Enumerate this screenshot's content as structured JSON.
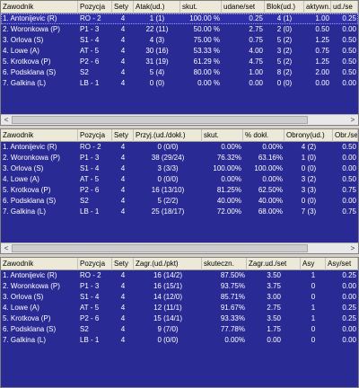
{
  "panels": [
    {
      "headers": [
        "Zawodnik",
        "Pozycja",
        "Sety",
        "Atak(ud.)",
        "skut.",
        "udane/set",
        "Blok(ud.)",
        "aktywn.",
        "ud./se"
      ],
      "rows": [
        [
          "1. Antonijevic (R)",
          "RO - 2",
          "4",
          "1 (1)",
          "100.00 %",
          "0.25",
          "4 (1)",
          "1.00",
          "0.25"
        ],
        [
          "2. Woronkowa (P)",
          "P1 - 3",
          "4",
          "22 (11)",
          "50.00 %",
          "2.75",
          "2 (0)",
          "0.50",
          "0.00"
        ],
        [
          "3. Orlova (S)",
          "S1 - 4",
          "4",
          "4 (3)",
          "75.00 %",
          "0.75",
          "5 (2)",
          "1.25",
          "0.50"
        ],
        [
          "4. Lowe (A)",
          "AT - 5",
          "4",
          "30 (16)",
          "53.33 %",
          "4.00",
          "3 (2)",
          "0.75",
          "0.50"
        ],
        [
          "5. Krotkova (P)",
          "P2 - 6",
          "4",
          "31 (19)",
          "61.29 %",
          "4.75",
          "5 (2)",
          "1.25",
          "0.50"
        ],
        [
          "6. Podsklana (S)",
          "S2",
          "4",
          "5 (4)",
          "80.00 %",
          "1.00",
          "8 (2)",
          "2.00",
          "0.50"
        ],
        [
          "7. Galkina (L)",
          "LB - 1",
          "4",
          "0 (0)",
          "0.00 %",
          "0.00",
          "0 (0)",
          "0.00",
          "0.00"
        ]
      ]
    },
    {
      "headers": [
        "Zawodnik",
        "Pozycja",
        "Sety",
        "Przyj.(ud./dokł.)",
        "skut.",
        "% dokł.",
        "Obrony(ud.)",
        "Obr./se"
      ],
      "rows": [
        [
          "1. Antonijevic (R)",
          "RO - 2",
          "4",
          "0 (0/0)",
          "0.00%",
          "0.00%",
          "4 (2)",
          "0.50"
        ],
        [
          "2. Woronkowa (P)",
          "P1 - 3",
          "4",
          "38 (29/24)",
          "76.32%",
          "63.16%",
          "1 (0)",
          "0.00"
        ],
        [
          "3. Orlova (S)",
          "S1 - 4",
          "4",
          "3 (3/3)",
          "100.00%",
          "100.00%",
          "0 (0)",
          "0.00"
        ],
        [
          "4. Lowe (A)",
          "AT - 5",
          "4",
          "0 (0/0)",
          "0.00%",
          "0.00%",
          "3 (2)",
          "0.50"
        ],
        [
          "5. Krotkova (P)",
          "P2 - 6",
          "4",
          "16 (13/10)",
          "81.25%",
          "62.50%",
          "3 (3)",
          "0.75"
        ],
        [
          "6. Podsklana (S)",
          "S2",
          "4",
          "5 (2/2)",
          "40.00%",
          "40.00%",
          "0 (0)",
          "0.00"
        ],
        [
          "7. Galkina (L)",
          "LB - 1",
          "4",
          "25 (18/17)",
          "72.00%",
          "68.00%",
          "7 (3)",
          "0.75"
        ]
      ]
    },
    {
      "headers": [
        "Zawodnik",
        "Pozycja",
        "Sety",
        "Zagr.(ud./pkt)",
        "skuteczn.",
        "Zagr.ud./set",
        "Asy",
        "Asy/set"
      ],
      "rows": [
        [
          "1. Antonijevic (R)",
          "RO - 2",
          "4",
          "16 (14/2)",
          "87.50%",
          "3.50",
          "1",
          "0.25"
        ],
        [
          "2. Woronkowa (P)",
          "P1 - 3",
          "4",
          "16 (15/1)",
          "93.75%",
          "3.75",
          "0",
          "0.00"
        ],
        [
          "3. Orlova (S)",
          "S1 - 4",
          "4",
          "14 (12/0)",
          "85.71%",
          "3.00",
          "0",
          "0.00"
        ],
        [
          "4. Lowe (A)",
          "AT - 5",
          "4",
          "12 (11/1)",
          "91.67%",
          "2.75",
          "1",
          "0.25"
        ],
        [
          "5. Krotkova (P)",
          "P2 - 6",
          "4",
          "15 (14/1)",
          "93.33%",
          "3.50",
          "1",
          "0.25"
        ],
        [
          "6. Podsklana (S)",
          "S2",
          "4",
          "9 (7/0)",
          "77.78%",
          "1.75",
          "0",
          "0.00"
        ],
        [
          "7. Galkina (L)",
          "LB - 1",
          "4",
          "0 (0/0)",
          "0.00%",
          "0.00",
          "0",
          "0.00"
        ]
      ]
    }
  ],
  "scroll": {
    "left_arrow": "<",
    "right_arrow": ">"
  }
}
